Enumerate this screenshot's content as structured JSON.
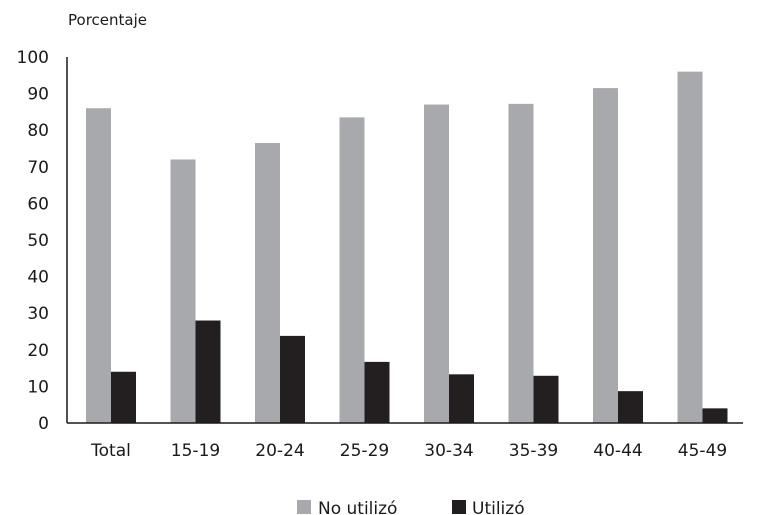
{
  "chart_data": {
    "type": "bar",
    "ylabel": "Porcentaje",
    "xlabel": "",
    "ylim": [
      0,
      100
    ],
    "yticks": [
      0,
      10,
      20,
      30,
      40,
      50,
      60,
      70,
      80,
      90,
      100
    ],
    "categories": [
      "Total",
      "15-19",
      "20-24",
      "25-29",
      "30-34",
      "35-39",
      "40-44",
      "45-49"
    ],
    "series": [
      {
        "name": "No utilizó",
        "color": "#a7a9ac",
        "values": [
          86,
          72,
          76.5,
          83.5,
          87,
          87.2,
          91.5,
          96
        ]
      },
      {
        "name": "Utilizó",
        "color": "#231f20",
        "values": [
          14,
          28,
          23.8,
          16.7,
          13.3,
          12.9,
          8.7,
          4.0
        ]
      }
    ],
    "grid": false,
    "legend_position": "bottom"
  }
}
